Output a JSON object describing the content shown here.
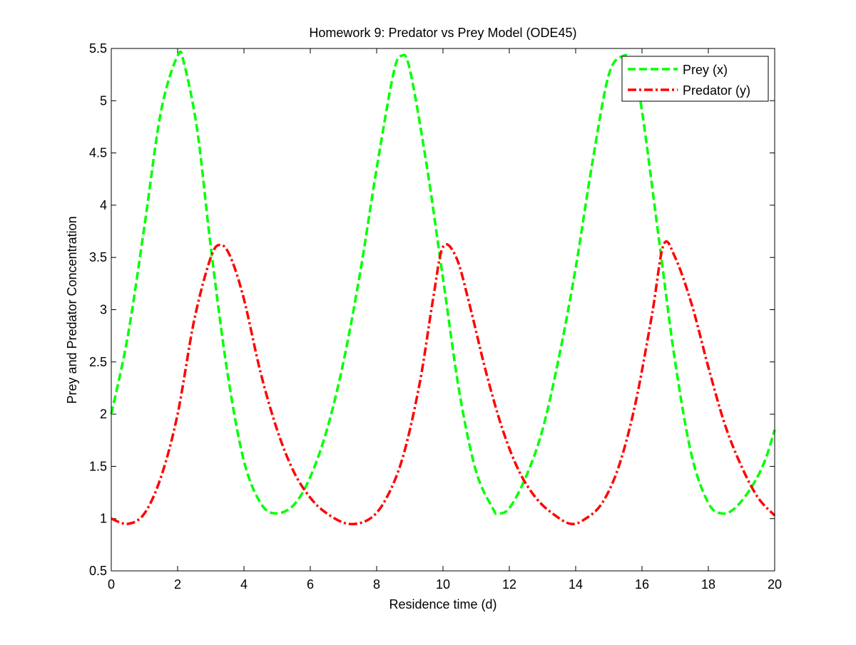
{
  "chart_data": {
    "type": "line",
    "title": "Homework 9: Predator vs Prey Model (ODE45)",
    "xlabel": "Residence time (d)",
    "ylabel": "Prey and Predator Concentration",
    "xlim": [
      0,
      20
    ],
    "ylim": [
      0.5,
      5.5
    ],
    "xticks": [
      0,
      2,
      4,
      6,
      8,
      10,
      12,
      14,
      16,
      18,
      20
    ],
    "yticks": [
      0.5,
      1,
      1.5,
      2,
      2.5,
      3,
      3.5,
      4,
      4.5,
      5,
      5.5
    ],
    "grid": false,
    "legend_position": "top-right",
    "series": [
      {
        "name": "Prey (x)",
        "color": "#00ff00",
        "line_style": "dashed",
        "x": [
          0,
          0.5,
          1.0,
          1.5,
          2.0,
          2.2,
          2.6,
          3.0,
          3.5,
          4.0,
          4.5,
          4.95,
          5.5,
          6.0,
          6.5,
          7.0,
          7.5,
          8.0,
          8.5,
          8.75,
          9.0,
          9.5,
          10.0,
          10.5,
          11.0,
          11.5,
          11.65,
          12.0,
          12.5,
          13.0,
          13.5,
          14.0,
          14.5,
          15.0,
          15.45,
          15.7,
          16.0,
          16.5,
          17.0,
          17.5,
          18.0,
          18.4,
          18.8,
          19.3,
          19.7,
          20.0
        ],
        "y": [
          2.0,
          2.75,
          3.8,
          4.9,
          5.43,
          5.35,
          4.7,
          3.6,
          2.4,
          1.55,
          1.15,
          1.05,
          1.13,
          1.4,
          1.85,
          2.5,
          3.35,
          4.35,
          5.25,
          5.43,
          5.3,
          4.4,
          3.3,
          2.2,
          1.45,
          1.1,
          1.05,
          1.1,
          1.4,
          1.85,
          2.55,
          3.4,
          4.4,
          5.25,
          5.43,
          5.35,
          4.9,
          3.7,
          2.5,
          1.6,
          1.15,
          1.05,
          1.1,
          1.3,
          1.55,
          1.85
        ]
      },
      {
        "name": "Predator (y)",
        "color": "#ff0000",
        "line_style": "dash-dot",
        "x": [
          0,
          0.5,
          1.0,
          1.5,
          2.0,
          2.5,
          3.0,
          3.3,
          3.6,
          4.0,
          4.5,
          5.0,
          5.5,
          6.0,
          6.5,
          7.15,
          7.8,
          8.3,
          8.8,
          9.3,
          9.7,
          10.0,
          10.4,
          10.8,
          11.3,
          11.8,
          12.3,
          12.8,
          13.3,
          13.85,
          14.3,
          14.8,
          15.3,
          15.8,
          16.3,
          16.65,
          17.0,
          17.5,
          18.0,
          18.5,
          19.0,
          19.5,
          20.0
        ],
        "y": [
          1.0,
          0.95,
          1.05,
          1.4,
          2.0,
          2.9,
          3.5,
          3.62,
          3.5,
          3.1,
          2.4,
          1.85,
          1.45,
          1.2,
          1.05,
          0.95,
          1.0,
          1.2,
          1.6,
          2.3,
          3.1,
          3.6,
          3.5,
          3.05,
          2.4,
          1.85,
          1.45,
          1.2,
          1.05,
          0.95,
          1.0,
          1.15,
          1.5,
          2.1,
          2.95,
          3.62,
          3.5,
          3.05,
          2.45,
          1.9,
          1.5,
          1.2,
          1.03
        ]
      }
    ]
  }
}
